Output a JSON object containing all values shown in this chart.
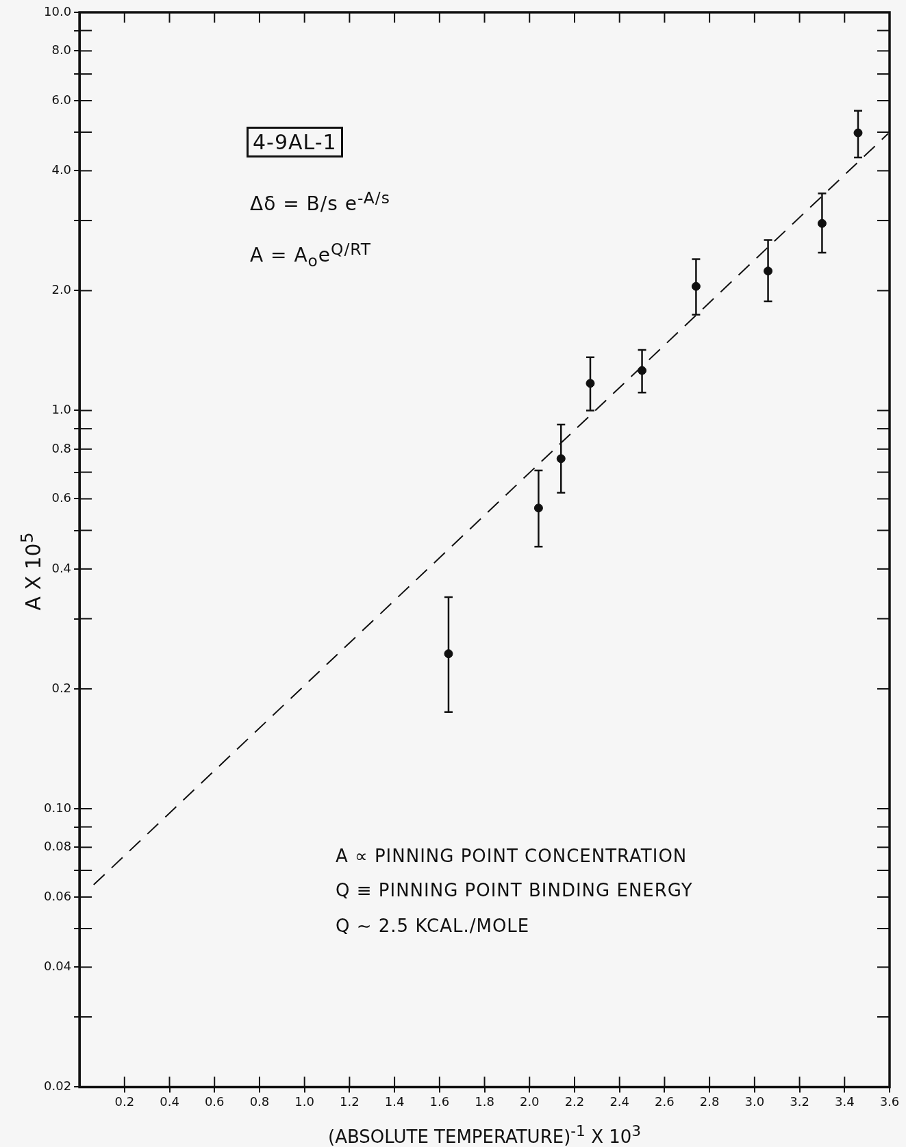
{
  "chart_data": {
    "type": "scatter",
    "xlabel": "(ABSOLUTE TEMPERATURE)$^{-1}$ X 10$^{3}$",
    "ylabel": "A X 10$^{5}$",
    "annotations": [
      "4-9AL-1",
      "Δδ = B/s e$^{-A/s}$",
      "A = A$_{o}$e$^{Q/RT}$",
      "A ∝ PINNING POINT CONCENTRATION",
      "Q ≡ PINNING POINT BINDING ENERGY",
      "Q ∼ 2.5 KCAL./MOLE"
    ],
    "log": "y",
    "grid": false,
    "legend": false,
    "marker": "circle",
    "xlim": [
      0,
      3.6
    ],
    "xticks": [
      0.2,
      0.4,
      0.6,
      0.8,
      {
        "value": 1,
        "label": "1.0"
      },
      1.2,
      1.4,
      1.6,
      1.8,
      {
        "value": 2,
        "label": "2.0"
      },
      2.2,
      2.4,
      2.6,
      2.8,
      {
        "value": 3,
        "label": "3.0"
      },
      3.2,
      3.4,
      3.6
    ],
    "ylim": [
      0.02,
      10
    ],
    "yticks": [
      {
        "value": 10,
        "label": "10.0"
      },
      {
        "value": 9,
        "label": null
      },
      {
        "value": 8,
        "label": "8.0"
      },
      {
        "value": 7,
        "label": null
      },
      {
        "value": 6,
        "label": "6.0"
      },
      {
        "value": 5,
        "label": null
      },
      {
        "value": 4,
        "label": "4.0"
      },
      {
        "value": 3,
        "label": null
      },
      {
        "value": 2,
        "label": "2.0"
      },
      {
        "value": 1,
        "label": "1.0"
      },
      {
        "value": 0.9,
        "label": null
      },
      0.8,
      {
        "value": 0.7,
        "label": null
      },
      0.6,
      {
        "value": 0.5,
        "label": null
      },
      0.4,
      {
        "value": 0.3,
        "label": null
      },
      0.2,
      {
        "value": 0.1,
        "label": "0.10"
      },
      {
        "value": 0.09,
        "label": null
      },
      0.08,
      {
        "value": 0.07,
        "label": null
      },
      0.06,
      {
        "value": 0.05,
        "label": null
      },
      0.04,
      {
        "value": 0.03,
        "label": null
      },
      0.02
    ],
    "series": [
      {
        "color": "#111111",
        "x": [
          1.64,
          2.04,
          2.14,
          2.27,
          2.5,
          2.74,
          3.06,
          3.3,
          3.46
        ],
        "values": [
          0.245,
          0.569,
          0.757,
          1.17,
          1.26,
          2.05,
          2.24,
          2.95,
          4.98
        ],
        "errors": [
          [
            0.175,
            0.34
          ],
          [
            0.455,
            0.707
          ],
          [
            0.622,
            0.922
          ],
          [
            1.0,
            1.36
          ],
          [
            1.11,
            1.42
          ],
          [
            1.74,
            2.4
          ],
          [
            1.88,
            2.68
          ],
          [
            2.49,
            3.51
          ],
          [
            4.32,
            5.66
          ]
        ]
      },
      {
        "type": "line",
        "color": "#111111",
        "line_style": "dashed",
        "marker": "none",
        "x": [
          0.063,
          3.594
        ],
        "values": [
          0.0644,
          4.96
        ]
      }
    ]
  }
}
